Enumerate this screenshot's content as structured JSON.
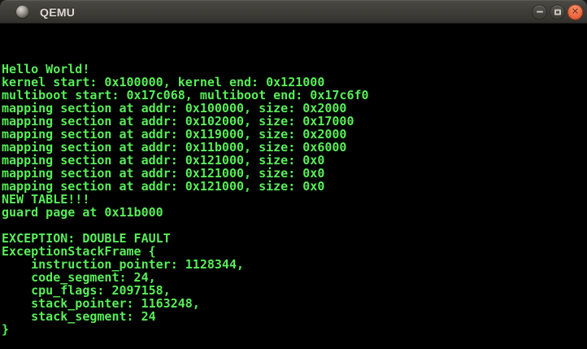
{
  "window": {
    "title": "QEMU",
    "icons": {
      "app_icon": "qemu-window-icon",
      "minimize": "minus-shape",
      "maximize": "square-outline-shape",
      "close_glyph": "✕"
    },
    "colors": {
      "titlebar_bg": "#3f3e39",
      "close_button": "#ec6a42",
      "title_text": "#dfdbd4"
    }
  },
  "terminal": {
    "colors": {
      "background": "#000000",
      "text": "#58ee58"
    },
    "lines": [
      "",
      "",
      "",
      "Hello World!",
      "kernel start: 0x100000, kernel end: 0x121000",
      "multiboot start: 0x17c068, multiboot end: 0x17c6f0",
      "mapping section at addr: 0x100000, size: 0x2000",
      "mapping section at addr: 0x102000, size: 0x17000",
      "mapping section at addr: 0x119000, size: 0x2000",
      "mapping section at addr: 0x11b000, size: 0x6000",
      "mapping section at addr: 0x121000, size: 0x0",
      "mapping section at addr: 0x121000, size: 0x0",
      "mapping section at addr: 0x121000, size: 0x0",
      "NEW TABLE!!!",
      "guard page at 0x11b000",
      "",
      "EXCEPTION: DOUBLE FAULT",
      "ExceptionStackFrame {",
      "    instruction_pointer: 1128344,",
      "    code_segment: 24,",
      "    cpu_flags: 2097158,",
      "    stack_pointer: 1163248,",
      "    stack_segment: 24",
      "}",
      ""
    ]
  }
}
